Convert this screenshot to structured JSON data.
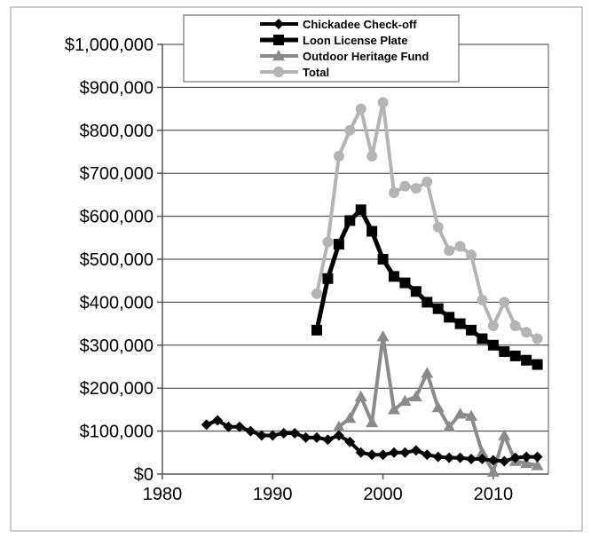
{
  "chart_data": {
    "type": "line",
    "title": "",
    "xlabel": "",
    "ylabel": "",
    "xlim": [
      1980,
      2015
    ],
    "ylim": [
      0,
      1000000
    ],
    "x_ticks": [
      1980,
      1990,
      2000,
      2010
    ],
    "y_ticks": [
      0,
      100000,
      200000,
      300000,
      400000,
      500000,
      600000,
      700000,
      800000,
      900000,
      1000000
    ],
    "x_tick_labels": [
      "1980",
      "1990",
      "2000",
      "2010"
    ],
    "y_tick_labels": [
      "$0",
      "$100,000",
      "$200,000",
      "$300,000",
      "$400,000",
      "$500,000",
      "$600,000",
      "$700,000",
      "$800,000",
      "$900,000",
      "$1,000,000"
    ],
    "grid": "horizontal",
    "legend_position": "top",
    "series": [
      {
        "name": "Chickadee Check-off",
        "color": "#000000",
        "marker": "diamond",
        "line_width": 4,
        "x": [
          1984,
          1985,
          1986,
          1987,
          1988,
          1989,
          1990,
          1991,
          1992,
          1993,
          1994,
          1995,
          1996,
          1997,
          1998,
          1999,
          2000,
          2001,
          2002,
          2003,
          2004,
          2005,
          2006,
          2007,
          2008,
          2009,
          2010,
          2011,
          2012,
          2013,
          2014
        ],
        "y": [
          115000,
          125000,
          110000,
          110000,
          100000,
          90000,
          90000,
          95000,
          95000,
          85000,
          85000,
          80000,
          90000,
          75000,
          50000,
          45000,
          45000,
          50000,
          50000,
          55000,
          45000,
          40000,
          38000,
          38000,
          35000,
          35000,
          32000,
          30000,
          38000,
          40000,
          40000
        ]
      },
      {
        "name": "Loon License Plate",
        "color": "#000000",
        "marker": "square",
        "line_width": 5,
        "x": [
          1994,
          1995,
          1996,
          1997,
          1998,
          1999,
          2000,
          2001,
          2002,
          2003,
          2004,
          2005,
          2006,
          2007,
          2008,
          2009,
          2010,
          2011,
          2012,
          2013,
          2014
        ],
        "y": [
          335000,
          455000,
          535000,
          590000,
          615000,
          565000,
          500000,
          460000,
          445000,
          425000,
          400000,
          385000,
          365000,
          350000,
          335000,
          315000,
          300000,
          285000,
          275000,
          265000,
          255000
        ]
      },
      {
        "name": "Outdoor Heritage Fund",
        "color": "#8a8a8a",
        "marker": "triangle",
        "line_width": 4,
        "x": [
          1996,
          1997,
          1998,
          1999,
          2000,
          2001,
          2002,
          2003,
          2004,
          2005,
          2006,
          2007,
          2008,
          2009,
          2010,
          2011,
          2012,
          2013,
          2014
        ],
        "y": [
          110000,
          130000,
          180000,
          120000,
          320000,
          150000,
          170000,
          180000,
          235000,
          155000,
          110000,
          140000,
          135000,
          50000,
          5000,
          90000,
          30000,
          25000,
          20000
        ]
      },
      {
        "name": "Total",
        "color": "#b4b4b4",
        "marker": "circle",
        "line_width": 4,
        "x": [
          1994,
          1995,
          1996,
          1997,
          1998,
          1999,
          2000,
          2001,
          2002,
          2003,
          2004,
          2005,
          2006,
          2007,
          2008,
          2009,
          2010,
          2011,
          2012,
          2013,
          2014
        ],
        "y": [
          420000,
          540000,
          740000,
          800000,
          850000,
          740000,
          865000,
          655000,
          670000,
          665000,
          680000,
          575000,
          520000,
          530000,
          510000,
          405000,
          345000,
          400000,
          345000,
          330000,
          315000
        ]
      }
    ]
  }
}
